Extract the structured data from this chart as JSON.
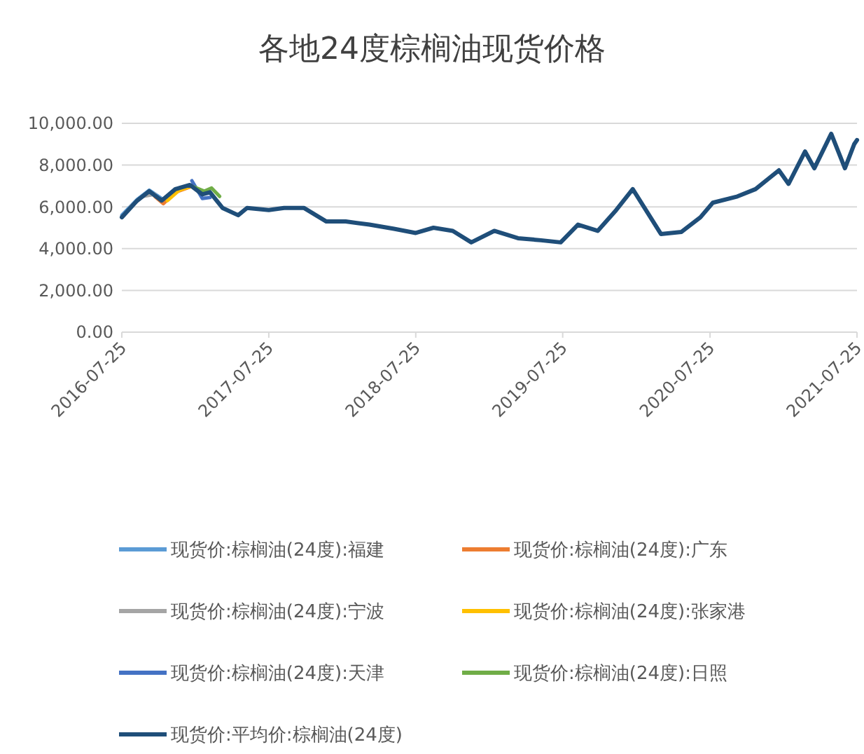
{
  "chart_data": {
    "type": "line",
    "title": "各地24度棕榈油现货价格",
    "xlim": [
      "2016-07-25",
      "2021-07-25"
    ],
    "xticks": [
      "2016-07-25",
      "2017-07-25",
      "2018-07-25",
      "2019-07-25",
      "2020-07-25",
      "2021-07-25"
    ],
    "ylim": [
      0,
      10000
    ],
    "yticks": [
      {
        "value": 0,
        "label": "0.00"
      },
      {
        "value": 2000,
        "label": "2,000.00"
      },
      {
        "value": 4000,
        "label": "4,000.00"
      },
      {
        "value": 6000,
        "label": "6,000.00"
      },
      {
        "value": 8000,
        "label": "8,000.00"
      },
      {
        "value": 10000,
        "label": "10,000.00"
      }
    ],
    "grid": "y",
    "legend": "bottom",
    "marker": "none",
    "line_style": "solid",
    "series": [
      {
        "name": "现货价:棕榈油(24度):福建",
        "color": "#5b9bd5",
        "x": [
          "2016-07-25",
          "2016-09-01",
          "2016-10-01",
          "2016-11-01"
        ],
        "values": [
          5600,
          6350,
          6800,
          6400
        ]
      },
      {
        "name": "现货价:棕榈油(24度):广东",
        "color": "#ed7d31",
        "x": [
          "2016-10-15",
          "2016-11-05",
          "2016-12-05",
          "2017-01-10"
        ],
        "values": [
          6500,
          6150,
          6700,
          6950
        ]
      },
      {
        "name": "现货价:棕榈油(24度):宁波",
        "color": "#a5a5a5",
        "x": [
          "2016-08-15",
          "2016-09-15",
          "2016-10-15"
        ],
        "values": [
          6000,
          6500,
          6600
        ]
      },
      {
        "name": "现货价:棕榈油(24度):张家港",
        "color": "#ffc000",
        "x": [
          "2016-11-15",
          "2016-12-15",
          "2017-01-15"
        ],
        "values": [
          6300,
          6800,
          7000
        ]
      },
      {
        "name": "现货价:棕榈油(24度):天津",
        "color": "#4472c4",
        "x": [
          "2017-01-15",
          "2017-02-10",
          "2017-03-01"
        ],
        "values": [
          7250,
          6400,
          6450
        ]
      },
      {
        "name": "现货价:棕榈油(24度):日照",
        "color": "#70ad47",
        "x": [
          "2017-01-20",
          "2017-02-15",
          "2017-03-05",
          "2017-03-25"
        ],
        "values": [
          6950,
          6750,
          6900,
          6500
        ]
      },
      {
        "name": "现货价:平均价:棕榈油(24度)",
        "color": "#1f4e79",
        "x": [
          "2016-07-25",
          "2016-09-01",
          "2016-10-01",
          "2016-11-01",
          "2016-12-05",
          "2017-01-10",
          "2017-02-10",
          "2017-03-01",
          "2017-04-01",
          "2017-05-10",
          "2017-06-01",
          "2017-07-25",
          "2017-09-01",
          "2017-10-20",
          "2017-12-15",
          "2018-02-01",
          "2018-04-01",
          "2018-06-01",
          "2018-07-25",
          "2018-09-07",
          "2018-10-25",
          "2018-12-10",
          "2019-02-05",
          "2019-04-05",
          "2019-06-01",
          "2019-07-20",
          "2019-09-01",
          "2019-10-20",
          "2019-12-05",
          "2020-01-15",
          "2020-02-10",
          "2020-03-25",
          "2020-05-15",
          "2020-07-01",
          "2020-08-01",
          "2020-10-01",
          "2020-11-15",
          "2021-01-12",
          "2021-02-05",
          "2021-03-18",
          "2021-04-10",
          "2021-05-22",
          "2021-06-25",
          "2021-07-18",
          "2021-07-25"
        ],
        "values": [
          5500,
          6300,
          6750,
          6300,
          6850,
          7050,
          6600,
          6700,
          5950,
          5600,
          5950,
          5850,
          5950,
          5950,
          5300,
          5300,
          5150,
          4950,
          4750,
          5000,
          4850,
          4300,
          4850,
          4500,
          4400,
          4300,
          5150,
          4850,
          5850,
          6850,
          6050,
          4700,
          4800,
          5500,
          6200,
          6500,
          6850,
          7750,
          7100,
          8650,
          7850,
          9500,
          7850,
          9000,
          9200
        ]
      }
    ]
  }
}
